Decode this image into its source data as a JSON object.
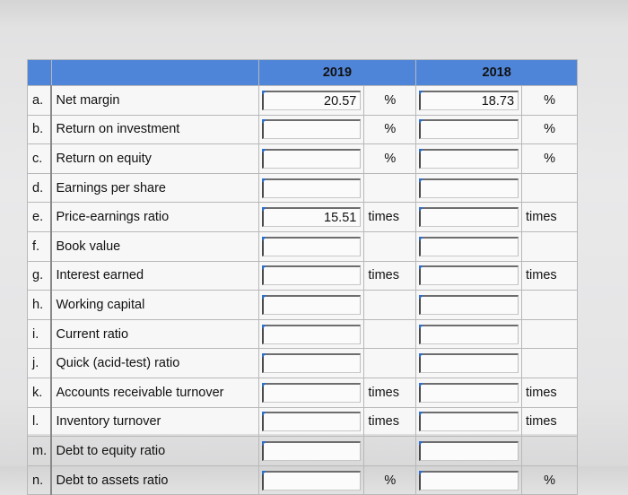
{
  "headers": {
    "y2019": "2019",
    "y2018": "2018"
  },
  "rows": [
    {
      "letter": "a.",
      "label": "Net margin",
      "v2019": "20.57",
      "u2019": "%",
      "v2018": "18.73",
      "u2018": "%"
    },
    {
      "letter": "b.",
      "label": "Return on investment",
      "v2019": "",
      "u2019": "%",
      "v2018": "",
      "u2018": "%"
    },
    {
      "letter": "c.",
      "label": "Return on equity",
      "v2019": "",
      "u2019": "%",
      "v2018": "",
      "u2018": "%"
    },
    {
      "letter": "d.",
      "label": "Earnings per share",
      "v2019": "",
      "u2019": "",
      "v2018": "",
      "u2018": ""
    },
    {
      "letter": "e.",
      "label": "Price-earnings ratio",
      "v2019": "15.51",
      "u2019": "times",
      "v2018": "",
      "u2018": "times"
    },
    {
      "letter": "f.",
      "label": "Book value",
      "v2019": "",
      "u2019": "",
      "v2018": "",
      "u2018": ""
    },
    {
      "letter": "g.",
      "label": "Interest earned",
      "v2019": "",
      "u2019": "times",
      "v2018": "",
      "u2018": "times"
    },
    {
      "letter": "h.",
      "label": "Working capital",
      "v2019": "",
      "u2019": "",
      "v2018": "",
      "u2018": ""
    },
    {
      "letter": "i.",
      "label": "Current ratio",
      "v2019": "",
      "u2019": "",
      "v2018": "",
      "u2018": ""
    },
    {
      "letter": "j.",
      "label": "Quick (acid-test) ratio",
      "v2019": "",
      "u2019": "",
      "v2018": "",
      "u2018": ""
    },
    {
      "letter": "k.",
      "label": "Accounts receivable turnover",
      "v2019": "",
      "u2019": "times",
      "v2018": "",
      "u2018": "times"
    },
    {
      "letter": "l.",
      "label": "Inventory turnover",
      "v2019": "",
      "u2019": "times",
      "v2018": "",
      "u2018": "times"
    },
    {
      "letter": "m.",
      "label": "Debt to equity ratio",
      "v2019": "",
      "u2019": "",
      "v2018": "",
      "u2018": ""
    },
    {
      "letter": "n.",
      "label": "Debt to assets ratio",
      "v2019": "",
      "u2019": "%",
      "v2018": "",
      "u2018": "%"
    }
  ],
  "colors": {
    "header": "#4f85d9",
    "accent": "#2f6fc9"
  }
}
